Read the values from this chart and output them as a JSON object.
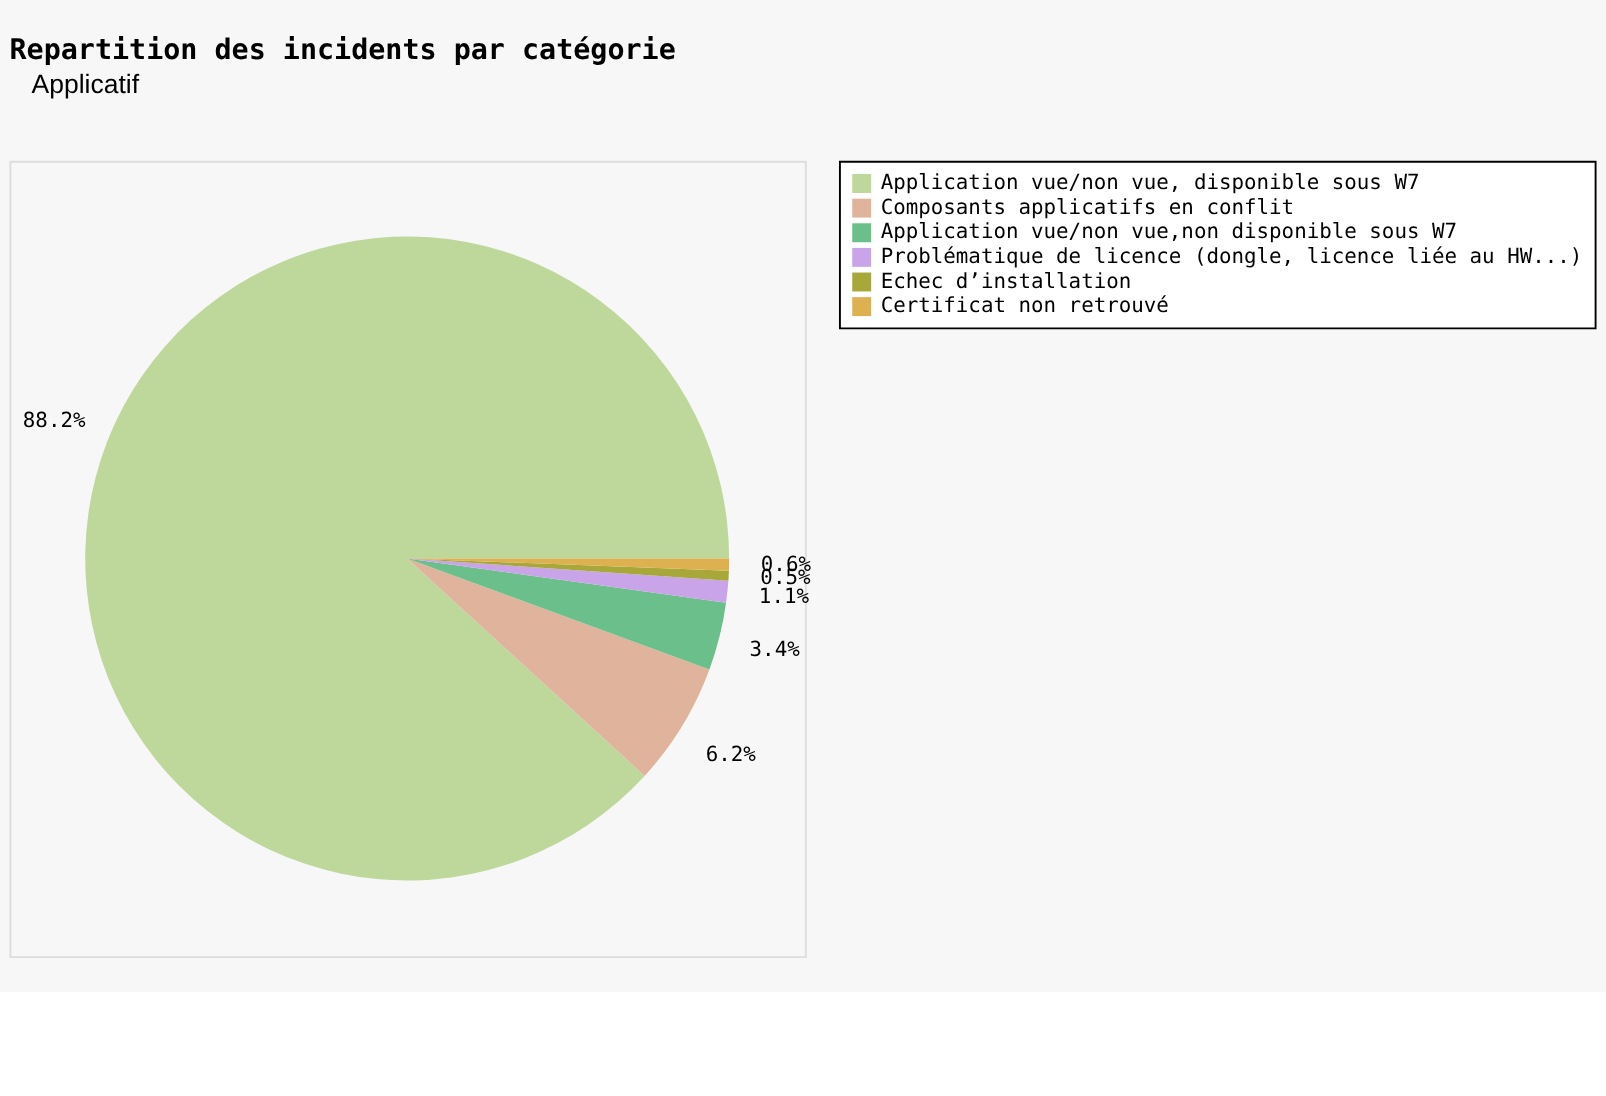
{
  "chart_data": {
    "type": "pie",
    "title": "Repartition des incidents par catégorie",
    "annotations": [
      "Applicatif"
    ],
    "categories": [
      "Application vue/non vue, disponible sous W7",
      "Composants applicatifs en conflit",
      "Application vue/non vue,non disponible sous W7",
      "Problématique de licence (dongle, licence liée au HW...)",
      "Echec d’installation",
      "Certificat non retrouvé"
    ],
    "values": [
      88.2,
      6.2,
      3.4,
      1.1,
      0.5,
      0.6
    ],
    "value_labels": [
      "88.2%",
      "6.2%",
      "3.4%",
      "1.1%",
      "0.5%",
      "0.6%"
    ],
    "colors": [
      "#bdd89a",
      "#e0b49c",
      "#6bbf8a",
      "#c9a4e8",
      "#a8a83a",
      "#ddb050"
    ],
    "legend": "right"
  }
}
